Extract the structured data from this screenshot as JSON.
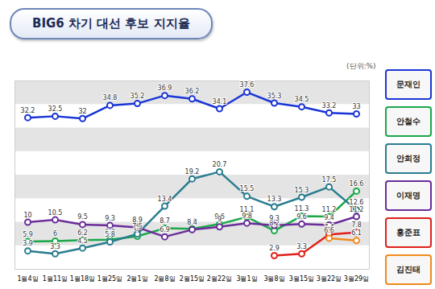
{
  "chart_data": {
    "type": "line",
    "title": "BIG6 차기 대선 후보 지지율",
    "subtitle": "(단위:%)",
    "categories": [
      "1월4일",
      "1월11일",
      "1월18일",
      "1월25일",
      "2월1일",
      "2월8일",
      "2월15일",
      "2월22일",
      "3월1일",
      "3월8일",
      "3월15일",
      "3월22일",
      "3월29일"
    ],
    "series": [
      {
        "name": "문재인",
        "color": "#1a35d6",
        "values": [
          32.2,
          32.5,
          32.0,
          34.8,
          35.2,
          36.9,
          36.2,
          34.1,
          37.6,
          35.3,
          34.5,
          33.2,
          33.0
        ]
      },
      {
        "name": "안철수",
        "color": "#1aa84a",
        "values": [
          5.9,
          6.0,
          6.2,
          6.3,
          7.0,
          8.7,
          8.6,
          9.6,
          11.1,
          8.2,
          11.3,
          11.2,
          16.6
        ]
      },
      {
        "name": "안희정",
        "color": "#2a7d8f",
        "values": [
          3.9,
          3.3,
          4.5,
          5.8,
          7.5,
          13.4,
          19.2,
          20.7,
          15.5,
          13.3,
          15.3,
          17.5,
          12.6
        ]
      },
      {
        "name": "이재명",
        "color": "#6a2d9a",
        "values": [
          10.0,
          10.5,
          9.5,
          9.3,
          8.9,
          6.9,
          8.4,
          9.0,
          9.8,
          9.3,
          9.6,
          9.4,
          11.2
        ]
      },
      {
        "name": "홍준표",
        "color": "#e0201a",
        "values": [
          null,
          null,
          null,
          null,
          null,
          null,
          null,
          null,
          null,
          2.9,
          3.3,
          7.4,
          7.8
        ]
      },
      {
        "name": "김진태",
        "color": "#f08a1e",
        "values": [
          null,
          null,
          null,
          null,
          null,
          null,
          null,
          null,
          null,
          null,
          null,
          6.6,
          6.1
        ]
      }
    ],
    "ylim": [
      0,
      40
    ],
    "yticks": [
      0,
      5,
      10,
      15,
      20,
      25,
      30,
      35,
      40
    ],
    "grid": true,
    "tick_labels": "x",
    "data_labels": true,
    "legend": "right",
    "marker": "circle"
  }
}
